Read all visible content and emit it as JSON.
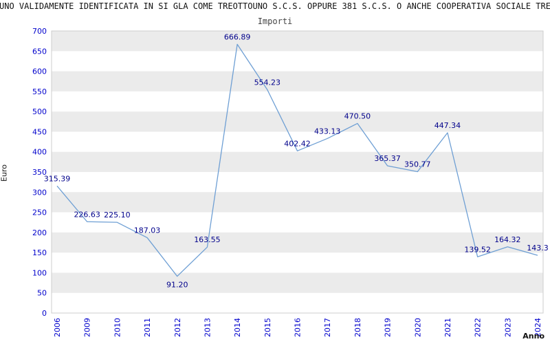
{
  "header": {
    "title": "TOUNO VALIDAMENTE IDENTIFICATA IN SI GLA COME TREOTTOUNO S.C.S. OPPURE 381 S.C.S. O ANCHE COOPERATIVA SOCIALE TREOT",
    "subtitle": "Importi"
  },
  "chart_data": {
    "type": "line",
    "title": "Importi",
    "categories": [
      "2006",
      "2009",
      "2010",
      "2011",
      "2012",
      "2013",
      "2014",
      "2015",
      "2016",
      "2017",
      "2018",
      "2019",
      "2020",
      "2021",
      "2022",
      "2023",
      "2024"
    ],
    "values": [
      315.39,
      226.63,
      225.1,
      187.03,
      91.2,
      163.55,
      666.89,
      554.23,
      402.42,
      433.13,
      470.5,
      365.37,
      350.77,
      447.34,
      139.52,
      164.32,
      143.3
    ],
    "labels": [
      "315.39",
      "226.63",
      "225.10",
      "187.03",
      "91.20",
      "163.55",
      "666.89",
      "554.23",
      "402.42",
      "433.13",
      "470.50",
      "365.37",
      "350.77",
      "447.34",
      "139.52",
      "164.32",
      "143.3"
    ],
    "xlabel": "Anno",
    "ylabel": "Euro",
    "ylim": [
      0,
      700
    ],
    "ytick_step": 50,
    "grid": "striped-bands",
    "legend": "none",
    "line_color": "#6e9fd4",
    "point_label_color": "#00008b",
    "tick_label_color": "#0000cc",
    "stripe_color": "#ebebeb",
    "plot_border_color": "#cccccc"
  }
}
